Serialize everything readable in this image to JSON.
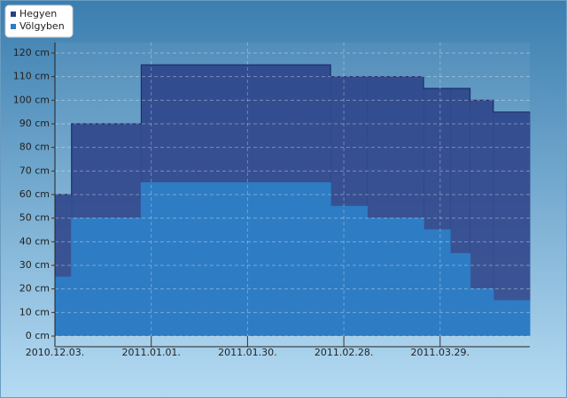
{
  "chart_data": {
    "type": "step-area",
    "x": [
      "2010.12.03",
      "2010.12.08",
      "2010.12.29",
      "2011.02.24",
      "2011.03.07",
      "2011.03.24",
      "2011.04.01",
      "2011.04.07",
      "2011.04.14"
    ],
    "series": [
      {
        "name": "Hegyen",
        "color": "#2a3f86",
        "values": [
          60,
          90,
          115,
          110,
          110,
          105,
          105,
          100,
          95
        ]
      },
      {
        "name": "Völgyben",
        "color": "#2e7cc4",
        "values": [
          25,
          50,
          65,
          55,
          50,
          45,
          35,
          20,
          15
        ]
      }
    ],
    "xlim": [
      "2010.12.03",
      "2011.04.25"
    ],
    "xticks": [
      {
        "value": "2010.12.03",
        "label": "2010.12.03."
      },
      {
        "value": "2011.01.01",
        "label": "2011.01.01."
      },
      {
        "value": "2011.01.30",
        "label": "2011.01.30."
      },
      {
        "value": "2011.02.28",
        "label": "2011.02.28."
      },
      {
        "value": "2011.03.29",
        "label": "2011.03.29."
      }
    ],
    "ylim": [
      0,
      120
    ],
    "yticks": [
      {
        "value": 0,
        "label": "0 cm"
      },
      {
        "value": 10,
        "label": "10 cm"
      },
      {
        "value": 20,
        "label": "20 cm"
      },
      {
        "value": 30,
        "label": "30 cm"
      },
      {
        "value": 40,
        "label": "40 cm"
      },
      {
        "value": 50,
        "label": "50 cm"
      },
      {
        "value": 60,
        "label": "60 cm"
      },
      {
        "value": 70,
        "label": "70 cm"
      },
      {
        "value": 80,
        "label": "80 cm"
      },
      {
        "value": 90,
        "label": "90 cm"
      },
      {
        "value": 100,
        "label": "100 cm"
      },
      {
        "value": 110,
        "label": "110 cm"
      },
      {
        "value": 120,
        "label": "120 cm"
      }
    ],
    "grid": true,
    "legend": "top-left"
  }
}
